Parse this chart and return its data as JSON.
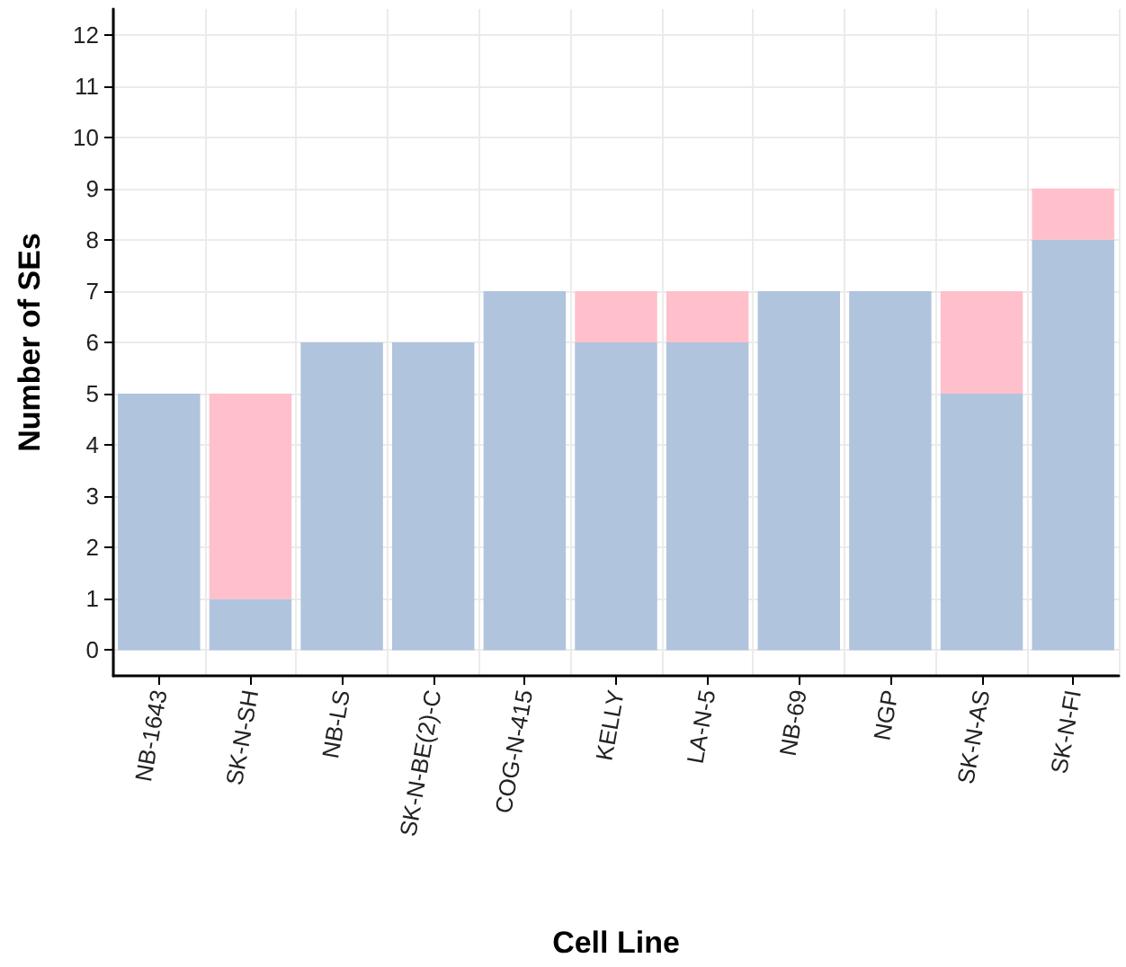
{
  "chart_data": {
    "type": "bar",
    "stacked": true,
    "xlabel": "Cell Line",
    "ylabel": "Number of SEs",
    "categories": [
      "NB-1643",
      "SK-N-SH",
      "NB-LS",
      "SK-N-BE(2)-C",
      "COG-N-415",
      "KELLY",
      "LA-N-5",
      "NB-69",
      "NGP",
      "SK-N-AS",
      "SK-N-FI"
    ],
    "series": [
      {
        "color": "#b0c4de",
        "values": [
          5,
          1,
          6,
          6,
          7,
          6,
          6,
          7,
          7,
          5,
          8
        ]
      },
      {
        "color": "#ffc0cb",
        "values": [
          0,
          4,
          0,
          0,
          0,
          1,
          1,
          0,
          0,
          2,
          1
        ]
      }
    ],
    "ylim": [
      -0.5,
      12.5
    ],
    "yticks": [
      0,
      1,
      2,
      3,
      4,
      5,
      6,
      7,
      8,
      9,
      10,
      11,
      12
    ],
    "grid": true
  }
}
